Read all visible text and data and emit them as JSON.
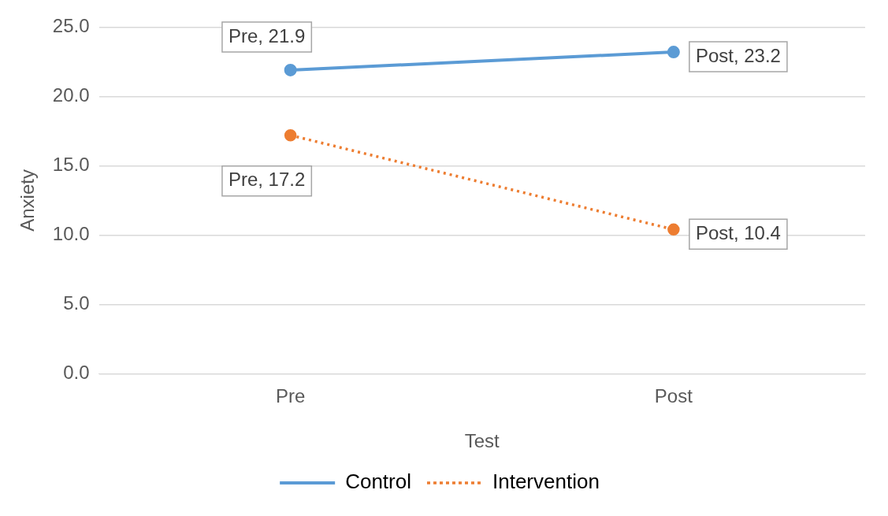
{
  "chart_data": {
    "type": "line",
    "xlabel": "Test",
    "ylabel": "Anxiety",
    "categories": [
      "Pre",
      "Post"
    ],
    "ylim": [
      0,
      25
    ],
    "yticks": [
      {
        "value": 0,
        "label": "0.0"
      },
      {
        "value": 5,
        "label": "5.0"
      },
      {
        "value": 10,
        "label": "10.0"
      },
      {
        "value": 15,
        "label": "15.0"
      },
      {
        "value": 20,
        "label": "20.0"
      },
      {
        "value": 25,
        "label": "25.0"
      }
    ],
    "grid": "y",
    "legend": "bottom",
    "marker": "circle",
    "series": [
      {
        "name": "Control",
        "color": "#5b9bd5",
        "values": [
          21.9,
          23.2
        ],
        "line_style": "solid",
        "value_labels": [
          "Pre, 21.9",
          "Post, 23.2"
        ]
      },
      {
        "name": "Intervention",
        "color": "#ed7d31",
        "values": [
          17.2,
          10.4
        ],
        "line_style": "dotted",
        "value_labels": [
          "Pre, 17.2",
          "Post, 10.4"
        ]
      }
    ]
  }
}
